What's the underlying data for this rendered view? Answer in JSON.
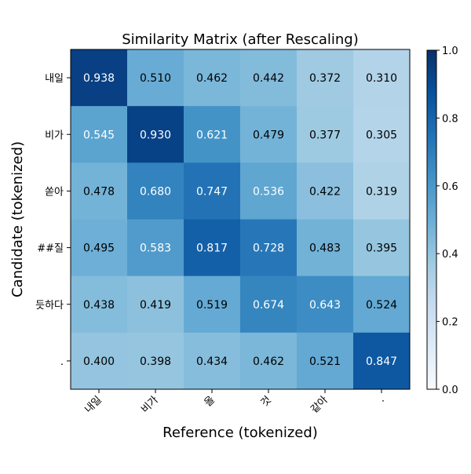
{
  "chart_data": {
    "type": "heatmap",
    "title": "Similarity Matrix (after Rescaling)",
    "xlabel": "Reference (tokenized)",
    "ylabel": "Candidate (tokenized)",
    "x_tick_labels": [
      "내일",
      "비가",
      "올",
      "것",
      "같아",
      "."
    ],
    "y_tick_labels": [
      "내일",
      "비가",
      "쏟아",
      "##질",
      "듯하다",
      "."
    ],
    "values": [
      [
        0.938,
        0.51,
        0.462,
        0.442,
        0.372,
        0.31
      ],
      [
        0.545,
        0.93,
        0.621,
        0.479,
        0.377,
        0.305
      ],
      [
        0.478,
        0.68,
        0.747,
        0.536,
        0.422,
        0.319
      ],
      [
        0.495,
        0.583,
        0.817,
        0.728,
        0.483,
        0.395
      ],
      [
        0.438,
        0.419,
        0.519,
        0.674,
        0.643,
        0.524
      ],
      [
        0.4,
        0.398,
        0.434,
        0.462,
        0.521,
        0.847
      ]
    ],
    "value_format_decimals": 3,
    "colormap": "Blues",
    "vmin": 0.0,
    "vmax": 1.0,
    "colorbar_ticks": [
      "0.0",
      "0.2",
      "0.4",
      "0.6",
      "0.8",
      "1.0"
    ],
    "colorbar_tick_values": [
      0.0,
      0.2,
      0.4,
      0.6,
      0.8,
      1.0
    ]
  }
}
